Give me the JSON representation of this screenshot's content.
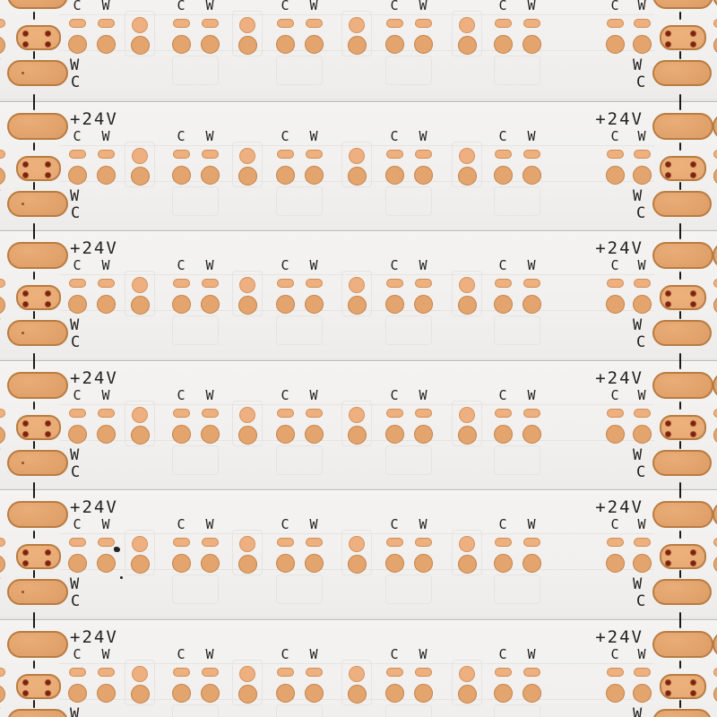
{
  "photo": {
    "subject_text_markings": [
      "+24V",
      "C",
      "W"
    ]
  },
  "labels": {
    "voltage": "+24V",
    "cool": "C",
    "warm": "W"
  },
  "strips": {
    "count": 6,
    "led_pad_groups_per_strip": 6,
    "link_pad_columns_per_strip": 4,
    "terminal": {
      "voltage_label": "+24V",
      "channel_labels": [
        "C",
        "W"
      ],
      "warm_pad_label": "W",
      "cool_pad_label": "C"
    }
  },
  "colors": {
    "background": "#f0efed",
    "strip_surface": "#f4f3f1",
    "seam_line": "#b9b8b6",
    "seam_highlight": "#fcfcfb",
    "trace_emboss": "#e5e4e1",
    "copper_fill": "#e0a069",
    "copper_highlight": "#eaad77",
    "copper_border": "#b87c42",
    "copper_small_fill": "#edb07e",
    "copper_small_border": "#cf8d54",
    "copper_circle_fill": "#e3a46e",
    "copper_circle_border": "#c4824a",
    "connector_fill": "#e7a973",
    "hole_color": "#7c2113",
    "text_color": "#222222",
    "tick_color": "#1a1a1a"
  }
}
